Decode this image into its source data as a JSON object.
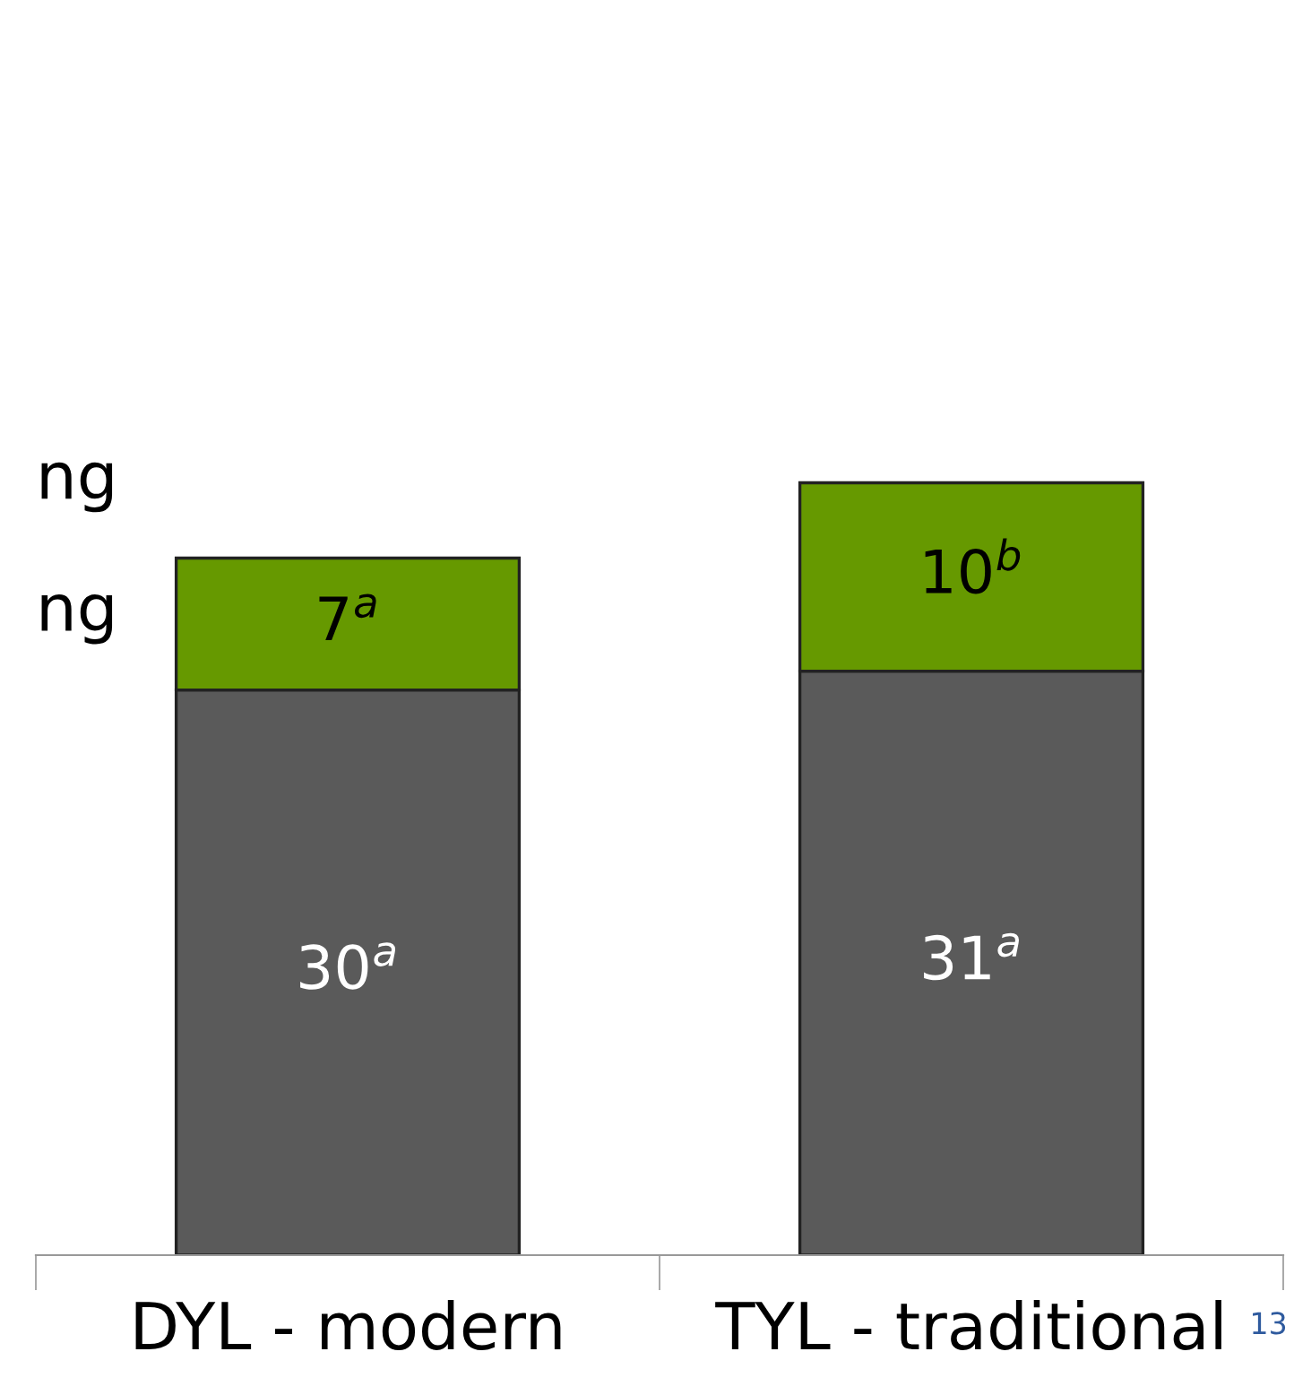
{
  "chart_data": {
    "type": "bar",
    "stacked": true,
    "categories": [
      "DYL - modern",
      "TYL - traditional"
    ],
    "series": [
      {
        "name": "ng",
        "color": "#5a5a5a",
        "values": [
          30,
          31
        ],
        "value_labels": [
          "30$^{a}$",
          "31$^{a}$"
        ]
      },
      {
        "name": "ng",
        "color": "#669900",
        "values": [
          7,
          10
        ],
        "value_labels": [
          "7$^{a}$",
          "10$^{b}$"
        ]
      }
    ],
    "annotations": [
      "13"
    ]
  }
}
